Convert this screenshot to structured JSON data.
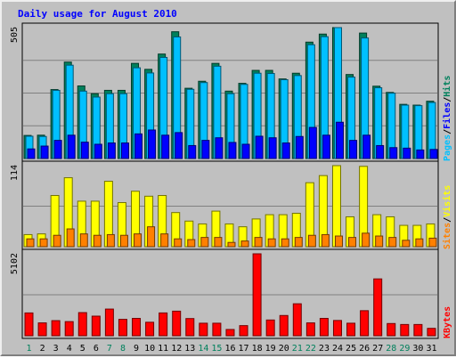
{
  "chart_data": {
    "type": "bar",
    "title": "Daily usage for August 2010",
    "days": [
      "1",
      "2",
      "3",
      "4",
      "5",
      "6",
      "7",
      "8",
      "9",
      "10",
      "11",
      "12",
      "13",
      "14",
      "15",
      "16",
      "17",
      "18",
      "19",
      "20",
      "21",
      "22",
      "23",
      "24",
      "25",
      "26",
      "27",
      "28",
      "29",
      "30",
      "31"
    ],
    "weekend_days": [
      "1",
      "7",
      "8",
      "14",
      "15",
      "21",
      "22",
      "28",
      "29"
    ],
    "panels": [
      {
        "name": "hits-files-pages",
        "max_label": "505",
        "ymax": 505,
        "series": [
          {
            "name": "Hits",
            "color": "#00805c",
            "values": [
              89,
              90,
              266,
              372,
              280,
              250,
              263,
              263,
              367,
              344,
              403,
              489,
              271,
              298,
              367,
              260,
              290,
              340,
              340,
              307,
              329,
              449,
              480,
              505,
              324,
              484,
              279,
              255,
              209,
              206,
              221
            ]
          },
          {
            "name": "Files",
            "color": "#00c0ff",
            "values": [
              86,
              85,
              263,
              360,
              260,
              237,
              250,
              250,
              350,
              330,
              390,
              469,
              267,
              293,
              356,
              250,
              286,
              329,
              328,
              304,
              320,
              439,
              470,
              505,
              314,
              465,
              273,
              252,
              206,
              204,
              216
            ]
          },
          {
            "name": "Pages",
            "color": "#0000ff",
            "values": [
              37,
              48,
              70,
              90,
              63,
              55,
              60,
              60,
              95,
              110,
              90,
              100,
              50,
              70,
              80,
              62,
              55,
              86,
              80,
              60,
              85,
              120,
              90,
              140,
              70,
              90,
              50,
              42,
              40,
              33,
              35
            ]
          }
        ],
        "axis_labels": [
          {
            "text": "Pages",
            "color": "#00c0ff"
          },
          {
            "text": "/",
            "color": "#000000"
          },
          {
            "text": "Files",
            "color": "#0000ff"
          },
          {
            "text": "/",
            "color": "#000000"
          },
          {
            "text": "Hits",
            "color": "#00805c"
          }
        ]
      },
      {
        "name": "visits-sites",
        "max_label": "114",
        "ymax": 114,
        "series": [
          {
            "name": "Visits",
            "color": "#ffff00",
            "values": [
              17,
              18,
              72,
              97,
              64,
              64,
              92,
              62,
              78,
              71,
              72,
              48,
              36,
              32,
              50,
              32,
              28,
              39,
              45,
              45,
              47,
              90,
              100,
              114,
              42,
              113,
              45,
              42,
              30,
              30,
              32
            ]
          },
          {
            "name": "Sites",
            "color": "#ff8000",
            "values": [
              11,
              11,
              16,
              25,
              18,
              16,
              17,
              16,
              18,
              28,
              18,
              11,
              10,
              13,
              13,
              6,
              8,
              13,
              11,
              11,
              13,
              16,
              17,
              15,
              13,
              19,
              15,
              13,
              9,
              11,
              12
            ]
          }
        ],
        "axis_labels": [
          {
            "text": "Sites",
            "color": "#ff8000"
          },
          {
            "text": "/",
            "color": "#000000"
          },
          {
            "text": "Visits",
            "color": "#ffff00"
          }
        ]
      },
      {
        "name": "kbytes",
        "max_label": "5102",
        "ymax": 5102,
        "series": [
          {
            "name": "KBytes",
            "color": "#ff0000",
            "values": [
              1420,
              800,
              940,
              880,
              1440,
              1220,
              1660,
              1020,
              1080,
              840,
              1420,
              1530,
              1070,
              780,
              780,
              390,
              630,
              5102,
              980,
              1260,
              1990,
              800,
              1080,
              950,
              780,
              1560,
              3540,
              760,
              700,
              700,
              460
            ]
          }
        ],
        "axis_labels": [
          {
            "text": "KBytes",
            "color": "#ff0000"
          }
        ]
      }
    ]
  }
}
